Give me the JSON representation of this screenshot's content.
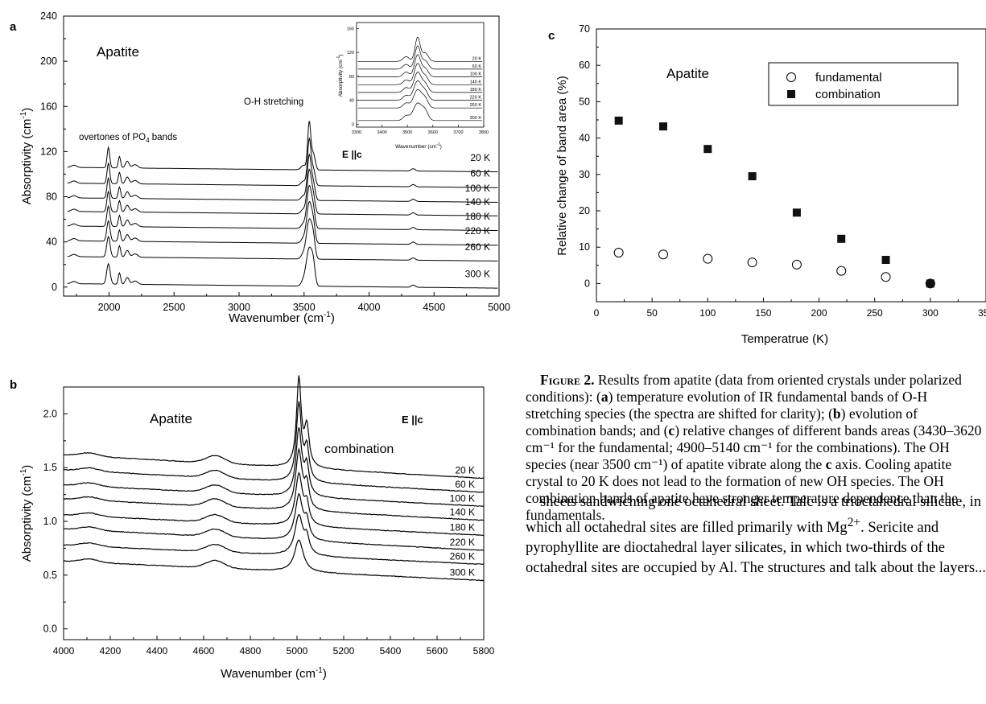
{
  "panel_a": {
    "letter": "a",
    "mineral": "Apatite",
    "annotation_overtones": "overtones of PO",
    "annotation_overtones_sub": "4",
    "annotation_overtones_tail": " bands",
    "annotation_oh": "O-H stretching",
    "xlabel": "Wavenumber  (cm",
    "xlabel_sup": "-1",
    "xlabel_tail": ")",
    "ylabel": "Absorptivity  (cm",
    "ylabel_sup": "-1",
    "ylabel_tail": ")",
    "x_ticks": [
      "2000",
      "2500",
      "3000",
      "3500",
      "4000",
      "4500",
      "5000"
    ],
    "y_ticks": [
      "0",
      "40",
      "80",
      "120",
      "160",
      "200",
      "240"
    ],
    "temps": [
      "20 K",
      "60 K",
      "100 K",
      "140 K",
      "180 K",
      "220 K",
      "260 K",
      "300 K"
    ],
    "inset": {
      "xlabel": "Wavenumber  (cm",
      "xlabel_sup": "-1",
      "xlabel_tail": ")",
      "ylabel": "Absorptivity (cm",
      "ylabel_sup": "-1",
      "ylabel_tail": ")",
      "x_ticks": [
        "3300",
        "3400",
        "3500",
        "3600",
        "3700",
        "3800"
      ],
      "y_ticks": [
        "0",
        "40",
        "80",
        "120",
        "160"
      ],
      "temps": [
        "20 K",
        "60 K",
        "100 K",
        "140 K",
        "180 K",
        "220 K",
        "260 K",
        "300 K"
      ],
      "polarization": "E ||c"
    }
  },
  "panel_b": {
    "letter": "b",
    "mineral": "Apatite",
    "polarization": "E ||c",
    "annotation": "combination",
    "xlabel": "Wavenumber  (cm",
    "xlabel_sup": "-1",
    "xlabel_tail": ")",
    "ylabel": "Absorptivity (cm",
    "ylabel_sup": "-1",
    "ylabel_tail": ")",
    "x_ticks": [
      "4000",
      "4200",
      "4400",
      "4600",
      "4800",
      "5000",
      "5200",
      "5400",
      "5600",
      "5800"
    ],
    "y_ticks": [
      "0.0",
      "0.5",
      "1.0",
      "1.5",
      "2.0"
    ],
    "temps": [
      "20 K",
      "60 K",
      "100 K",
      "140 K",
      "180 K",
      "220 K",
      "260 K",
      "300 K"
    ]
  },
  "panel_c": {
    "letter": "c",
    "mineral": "Apatite",
    "xlabel": "Temperatrue  (K)",
    "ylabel": "Relative change of band area (%)",
    "x_ticks": [
      "0",
      "50",
      "100",
      "150",
      "200",
      "250",
      "300",
      "350"
    ],
    "y_ticks": [
      "0",
      "10",
      "20",
      "30",
      "40",
      "50",
      "60",
      "70"
    ],
    "legend": [
      "fundamental",
      "combination"
    ]
  },
  "chart_data": [
    {
      "type": "scatter",
      "title": "Apatite",
      "xlabel": "Temperatrue  (K)",
      "ylabel": "Relative change of band area (%)",
      "xlim": [
        0,
        350
      ],
      "ylim": [
        -5,
        70
      ],
      "legend_position": "top-right",
      "series": [
        {
          "name": "fundamental",
          "marker": "open-circle",
          "x": [
            20,
            60,
            100,
            140,
            180,
            220,
            260,
            300
          ],
          "y": [
            8.5,
            8.0,
            6.8,
            5.8,
            5.2,
            3.5,
            1.8,
            0.0
          ]
        },
        {
          "name": "combination",
          "marker": "filled-square",
          "x": [
            20,
            60,
            100,
            140,
            180,
            220,
            260,
            300
          ],
          "y": [
            44.8,
            43.2,
            37.0,
            29.5,
            19.5,
            12.3,
            6.5,
            0.0
          ]
        }
      ]
    }
  ],
  "caption": {
    "label": "Figure 2.",
    "t1": " Results from apatite (data from oriented crystals under polarized conditions): (",
    "a": "a",
    "t2": ") temperature evolution of IR fundamental bands of O-H stretching species (the spectra are shifted for clarity); (",
    "b": "b",
    "t3": ") evolution of combination bands; and (",
    "c": "c",
    "t4": ") relative changes of different bands areas (3430–3620 cm⁻¹ for the fundamental; 4900–5140 cm⁻¹ for the combinations). The OH species (near 3500 cm⁻¹) of apatite vibrate along the ",
    "c2": "c",
    "t5": " axis. Cooling apatite crystal to 20 K does not lead to the formation of new OH species. The OH combination bands of apatite have stronger temperature dependence than the fundamentals."
  },
  "body": {
    "t1": "sheets sandwiching one octahedral sheet. Talc is a trioctahedral silicate, in which all octahedral sites are filled primarily with Mg",
    "sup": "2+",
    "t2": ". Sericite and pyrophyllite are dioctahedral layer silicates, in which two-thirds of the octahedral sites are occupied by Al. The structures and talk about the layers..."
  }
}
